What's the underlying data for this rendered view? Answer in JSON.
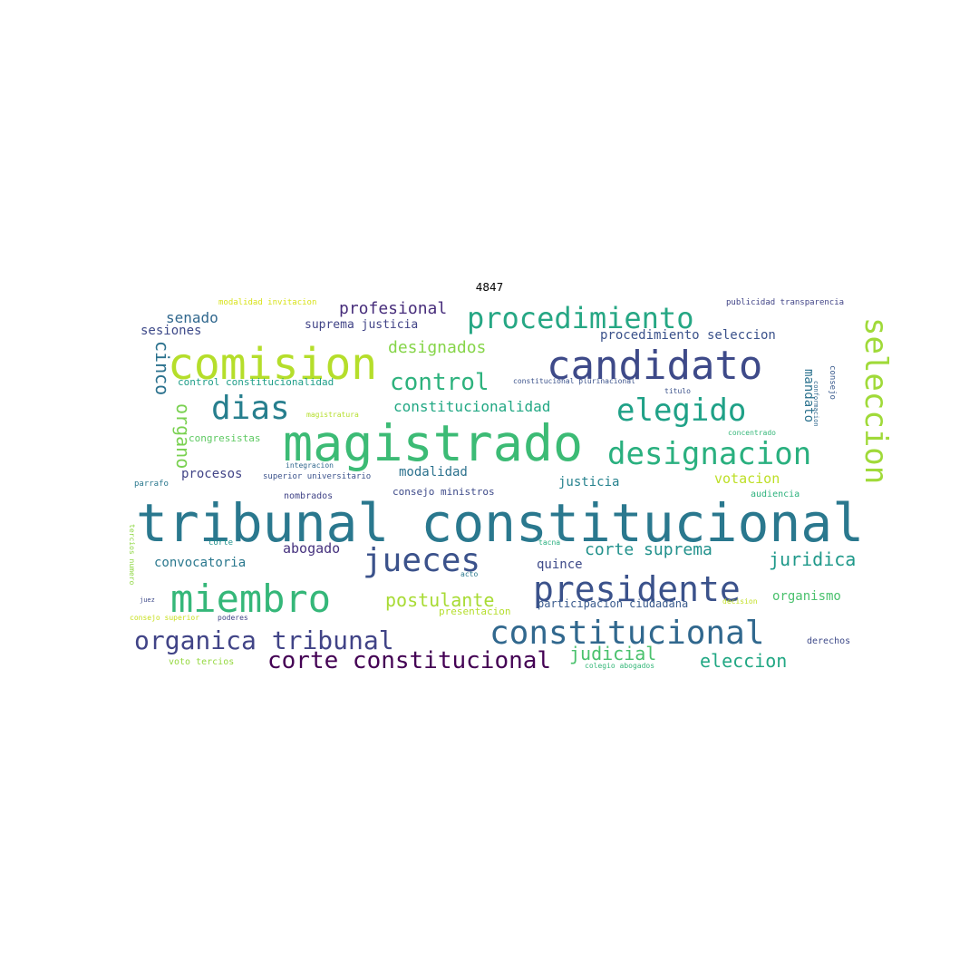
{
  "title": "4847",
  "words": [
    {
      "text": "tribunal constitucional",
      "color": "#2a788e"
    },
    {
      "text": "magistrado",
      "color": "#3cbb75"
    },
    {
      "text": "comision",
      "color": "#b5de2b"
    },
    {
      "text": "candidato",
      "color": "#3e4a89"
    },
    {
      "text": "procedimiento",
      "color": "#26a784"
    },
    {
      "text": "miembro",
      "color": "#35b779"
    },
    {
      "text": "presidente",
      "color": "#3b528b"
    },
    {
      "text": "constitucional",
      "color": "#31688e"
    },
    {
      "text": "designacion",
      "color": "#2ab07f"
    },
    {
      "text": "elegido",
      "color": "#1fa187"
    },
    {
      "text": "dias",
      "color": "#277f8e"
    },
    {
      "text": "jueces",
      "color": "#3b528b"
    },
    {
      "text": "seleccion",
      "color": "#a0da39"
    },
    {
      "text": "organica tribunal",
      "color": "#414487"
    },
    {
      "text": "corte constitucional",
      "color": "#440154"
    },
    {
      "text": "control",
      "color": "#2db27d"
    },
    {
      "text": "corte suprema",
      "color": "#21918c"
    },
    {
      "text": "postulante",
      "color": "#a8db34"
    },
    {
      "text": "eleccion",
      "color": "#22a884"
    },
    {
      "text": "juridica",
      "color": "#1f998a"
    },
    {
      "text": "designados",
      "color": "#86d549"
    },
    {
      "text": "profesional",
      "color": "#472d7b"
    },
    {
      "text": "cinco",
      "color": "#2c728e"
    },
    {
      "text": "organo",
      "color": "#7ad151"
    },
    {
      "text": "judicial",
      "color": "#4ac16d"
    },
    {
      "text": "constitucionalidad",
      "color": "#22a884"
    },
    {
      "text": "senado",
      "color": "#31688e"
    },
    {
      "text": "sesiones",
      "color": "#3e4a89"
    },
    {
      "text": "abogado",
      "color": "#46327e"
    },
    {
      "text": "suprema justicia",
      "color": "#414487"
    },
    {
      "text": "procedimiento seleccion",
      "color": "#3b528b"
    },
    {
      "text": "votacion",
      "color": "#bddf26"
    },
    {
      "text": "modalidad",
      "color": "#2c728e"
    },
    {
      "text": "mandato",
      "color": "#2c728e"
    },
    {
      "text": "convocatoria",
      "color": "#2a788e"
    },
    {
      "text": "quince",
      "color": "#3e4a89"
    },
    {
      "text": "justicia",
      "color": "#26828e"
    },
    {
      "text": "organismo",
      "color": "#4ac16d"
    },
    {
      "text": "procesos",
      "color": "#414487"
    },
    {
      "text": "participacion ciudadana",
      "color": "#38598c"
    },
    {
      "text": "congresistas",
      "color": "#5ec962"
    },
    {
      "text": "control constitucionalidad",
      "color": "#1f9e89"
    },
    {
      "text": "consejo ministros",
      "color": "#3e4a89"
    },
    {
      "text": "nombrados",
      "color": "#414487"
    },
    {
      "text": "audiencia",
      "color": "#2db27d"
    },
    {
      "text": "derechos",
      "color": "#3e4a89"
    },
    {
      "text": "presentacion",
      "color": "#b5de2b"
    },
    {
      "text": "consejo",
      "color": "#38598c"
    },
    {
      "text": "superior universitario",
      "color": "#3b528b"
    },
    {
      "text": "modalidad invitacion",
      "color": "#d8e219"
    },
    {
      "text": "publicidad transparencia",
      "color": "#414487"
    },
    {
      "text": "voto tercios",
      "color": "#95d840"
    },
    {
      "text": "colegio abogados",
      "color": "#35b779"
    },
    {
      "text": "consejo superior",
      "color": "#c8e020"
    },
    {
      "text": "magistratura",
      "color": "#b5de2b"
    },
    {
      "text": "integracion",
      "color": "#31688e"
    },
    {
      "text": "constitucional plurinacional",
      "color": "#3b528b"
    },
    {
      "text": "conformacion",
      "color": "#31688e"
    },
    {
      "text": "titulo",
      "color": "#3b528b"
    },
    {
      "text": "concentrado",
      "color": "#35b779"
    },
    {
      "text": "parrafo",
      "color": "#2a788e"
    },
    {
      "text": "corte",
      "color": "#21918c"
    },
    {
      "text": "tacna",
      "color": "#29af7f"
    },
    {
      "text": "acto",
      "color": "#2a788e"
    },
    {
      "text": "decision",
      "color": "#c2df23"
    },
    {
      "text": "poderes",
      "color": "#414487"
    },
    {
      "text": "juez",
      "color": "#3e4a89"
    },
    {
      "text": "tercios numero",
      "color": "#8fd744"
    }
  ]
}
